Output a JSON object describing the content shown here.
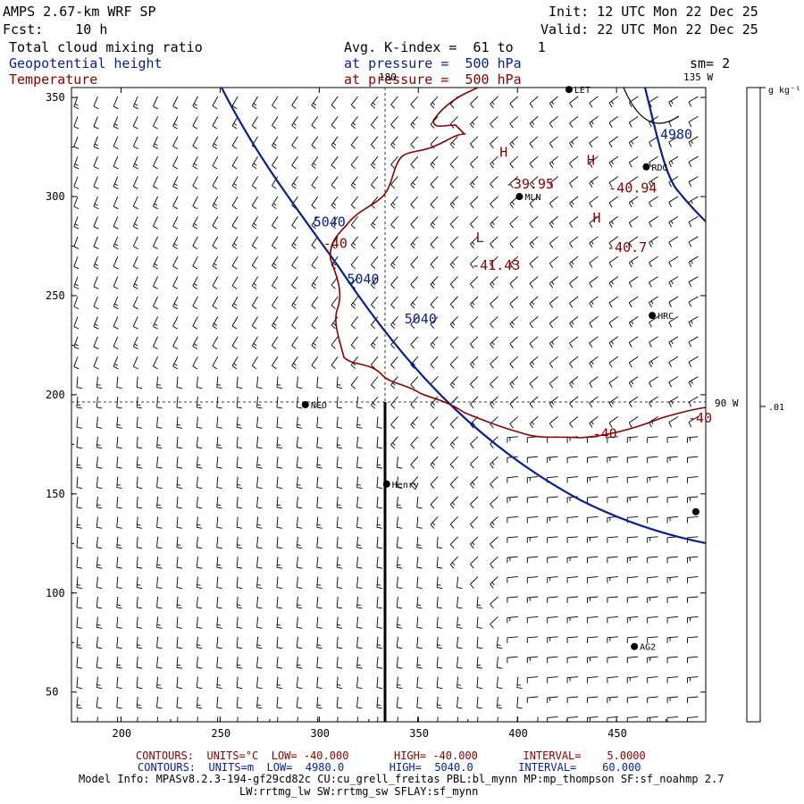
{
  "header": {
    "model": "AMPS 2.67-km WRF SP",
    "forecast": "Fcst:    10 h",
    "init": "Init: 12 UTC Mon 22 Dec 25",
    "valid": "Valid: 22 UTC Mon 22 Dec 25",
    "field1": "Total cloud mixing ratio",
    "field2": "Geopotential height",
    "field3": "Temperature",
    "avg": "Avg. K-index =  61 to   1",
    "pressure_blue": "at pressure =  500 hPa",
    "pressure_red": "at pressure =  500 hPa",
    "sm": "sm= 2"
  },
  "map": {
    "meridian_labels": [
      "180",
      "135 W",
      "90 W"
    ],
    "colorbar_unit": "g kg⁻¹",
    "colorbar_tick": ".01",
    "x_ticks": [
      "200",
      "250",
      "300",
      "350",
      "400",
      "450"
    ],
    "y_ticks": [
      "350",
      "300",
      "250",
      "200",
      "150",
      "100",
      "50"
    ],
    "stations": [
      {
        "name": "LET",
        "x": 426,
        "y": 354
      },
      {
        "name": "RDG",
        "x": 465,
        "y": 315
      },
      {
        "name": "MLN",
        "x": 401,
        "y": 300
      },
      {
        "name": "HRC",
        "x": 468,
        "y": 240
      },
      {
        "name": "NCO",
        "x": 293,
        "y": 195
      },
      {
        "name": "Henry",
        "x": 334,
        "y": 155
      },
      {
        "name": "AG2",
        "x": 459,
        "y": 73
      },
      {
        "name": "",
        "x": 490,
        "y": 141
      }
    ],
    "height_labels": [
      {
        "text": "5040",
        "x": 297,
        "y": 285
      },
      {
        "text": "5040",
        "x": 314,
        "y": 256
      },
      {
        "text": "5040",
        "x": 343,
        "y": 236
      },
      {
        "text": "4980",
        "x": 472,
        "y": 329
      }
    ],
    "temp_labels": [
      {
        "text": "H",
        "x": 391,
        "y": 320
      },
      {
        "text": "-39.95",
        "x": 394,
        "y": 304
      },
      {
        "text": "H",
        "x": 435,
        "y": 316
      },
      {
        "text": "-40.94",
        "x": 446,
        "y": 302
      },
      {
        "text": "H",
        "x": 438,
        "y": 287
      },
      {
        "text": "-40.7",
        "x": 445,
        "y": 272
      },
      {
        "text": "L",
        "x": 379,
        "y": 277
      },
      {
        "text": "-41.43",
        "x": 377,
        "y": 263
      },
      {
        "text": "-40",
        "x": 302,
        "y": 274
      },
      {
        "text": "-40",
        "x": 438,
        "y": 178
      },
      {
        "text": "-40",
        "x": 486,
        "y": 186
      }
    ]
  },
  "footer": {
    "red_line": "CONTOURS:  UNITS=°C  LOW= -40.000       HIGH= -40.000       INTERVAL=    5.0000",
    "blue_line": "CONTOURS:  UNITS=m  LOW=  4980.0       HIGH=  5040.0       INTERVAL=    60.000",
    "model_info": "Model Info: MPASv8.2.3-194-gf29cd82c CU:cu_grell_freitas PBL:bl_mynn MP:mp_thompson SF:sf_noahmp 2.7",
    "model_info2": "LW:rrtmg_lw SW:rrtmg_sw SFLAY:sf_mynn"
  },
  "colors": {
    "height": "#0a1f8f",
    "temperature": "#8b0000",
    "text": "#000000"
  }
}
